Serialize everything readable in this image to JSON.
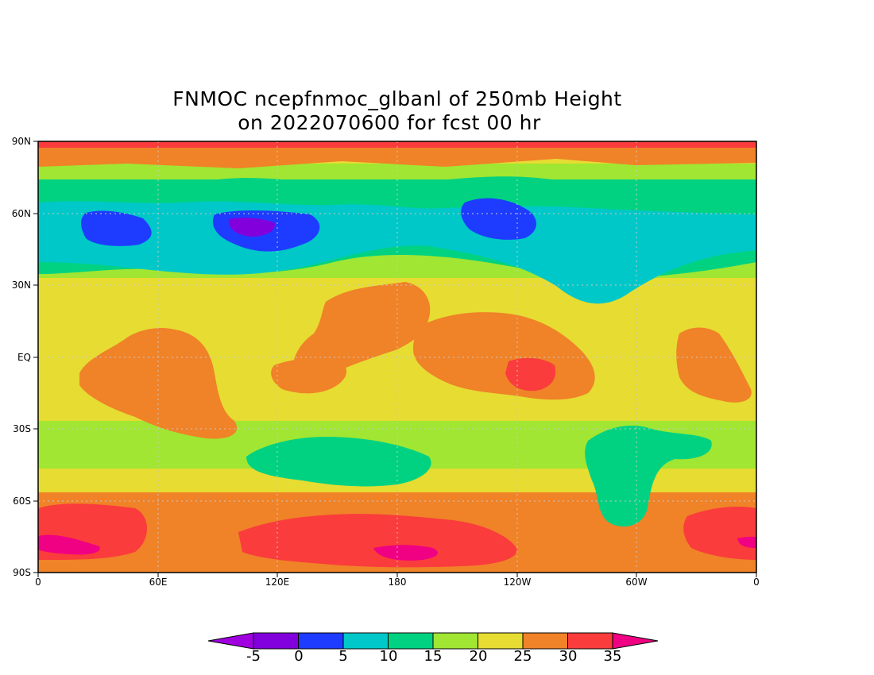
{
  "title": {
    "line1": "FNMOC ncepfnmoc_glbanl of 250mb Height",
    "line2": "on 2022070600 for fcst 00 hr"
  },
  "map": {
    "lat_labels": [
      "90N",
      "60N",
      "30N",
      "EQ",
      "30S",
      "60S",
      "90S"
    ],
    "lon_labels": [
      "0",
      "60E",
      "120E",
      "180",
      "120W",
      "60W",
      "0"
    ],
    "graticule": "dotted",
    "coastlines": "dotted gray"
  },
  "colorbar": {
    "labels": [
      "-5",
      "0",
      "5",
      "10",
      "15",
      "20",
      "25",
      "30",
      "35"
    ],
    "colors": [
      "#a000e0",
      "#8200dc",
      "#1e3cff",
      "#00c8c8",
      "#00d282",
      "#a0e632",
      "#e6dc32",
      "#f08228",
      "#fa3c3c",
      "#f00082"
    ],
    "extend": "both"
  }
}
